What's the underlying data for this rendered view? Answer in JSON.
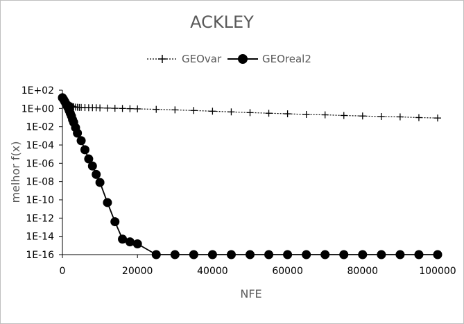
{
  "chart_data": {
    "type": "line",
    "title": "ACKLEY",
    "xlabel": "NFE",
    "ylabel": "melhor f(x)",
    "yscale": "log",
    "xlim": [
      0,
      100000
    ],
    "ylim": [
      1e-16,
      100
    ],
    "x_ticks": [
      "0",
      "20000",
      "40000",
      "60000",
      "80000",
      "100000"
    ],
    "y_ticks": [
      "1E+02",
      "1E+00",
      "1E-02",
      "1E-04",
      "1E-06",
      "1E-08",
      "1E-10",
      "1E-12",
      "1E-14",
      "1E-16"
    ],
    "legend_position": "top",
    "grid": false,
    "series": [
      {
        "name": "GEOvar",
        "marker": "plus",
        "line": "dotted",
        "color": "#000000",
        "x": [
          0,
          250,
          500,
          750,
          1000,
          1250,
          1500,
          1750,
          2000,
          2250,
          2500,
          2750,
          3000,
          3500,
          4000,
          4500,
          5000,
          6000,
          7000,
          8000,
          9000,
          10000,
          12000,
          14000,
          16000,
          18000,
          20000,
          25000,
          30000,
          35000,
          40000,
          45000,
          50000,
          55000,
          60000,
          65000,
          70000,
          75000,
          80000,
          85000,
          90000,
          95000,
          100000
        ],
        "y": [
          20,
          15,
          11,
          8,
          6,
          4.5,
          3.5,
          2.8,
          2.3,
          2.0,
          1.8,
          1.6,
          1.5,
          1.4,
          1.35,
          1.3,
          1.3,
          1.25,
          1.2,
          1.2,
          1.2,
          1.15,
          1.1,
          1.05,
          1.0,
          0.95,
          0.9,
          0.8,
          0.7,
          0.6,
          0.5,
          0.42,
          0.35,
          0.3,
          0.26,
          0.22,
          0.2,
          0.17,
          0.15,
          0.13,
          0.12,
          0.1,
          0.09
        ]
      },
      {
        "name": "GEOreal2",
        "marker": "circle",
        "line": "solid",
        "color": "#000000",
        "x": [
          0,
          300,
          600,
          900,
          1200,
          1500,
          1800,
          2100,
          2400,
          2700,
          3000,
          3500,
          4000,
          5000,
          6000,
          7000,
          8000,
          9000,
          10000,
          12000,
          14000,
          16000,
          18000,
          20000,
          25000,
          30000,
          35000,
          40000,
          45000,
          50000,
          55000,
          60000,
          65000,
          70000,
          75000,
          80000,
          85000,
          90000,
          95000,
          100000
        ],
        "y": [
          15,
          10,
          6,
          3.5,
          2,
          1.2,
          0.6,
          0.3,
          0.15,
          0.06,
          0.03,
          0.008,
          0.002,
          0.0003,
          3e-05,
          3e-06,
          5e-07,
          6e-08,
          8e-09,
          5e-11,
          4e-13,
          5e-15,
          2.5e-15,
          1.5e-15,
          1e-16,
          1e-16,
          1e-16,
          1e-16,
          1e-16,
          1e-16,
          1e-16,
          1e-16,
          1e-16,
          1e-16,
          1e-16,
          1e-16,
          1e-16,
          1e-16,
          1e-16,
          1e-16
        ],
        "markers_x": [
          0,
          300,
          600,
          900,
          1200,
          1500,
          1800,
          2100,
          2400,
          2700,
          3000,
          3500,
          4000,
          5000,
          6000,
          7000,
          8000,
          9000,
          10000,
          12000,
          14000,
          16000,
          18000,
          20000,
          25000,
          30000,
          35000,
          40000,
          45000,
          50000,
          55000,
          60000,
          65000,
          70000,
          75000,
          80000,
          85000,
          90000,
          95000,
          100000
        ]
      }
    ]
  }
}
